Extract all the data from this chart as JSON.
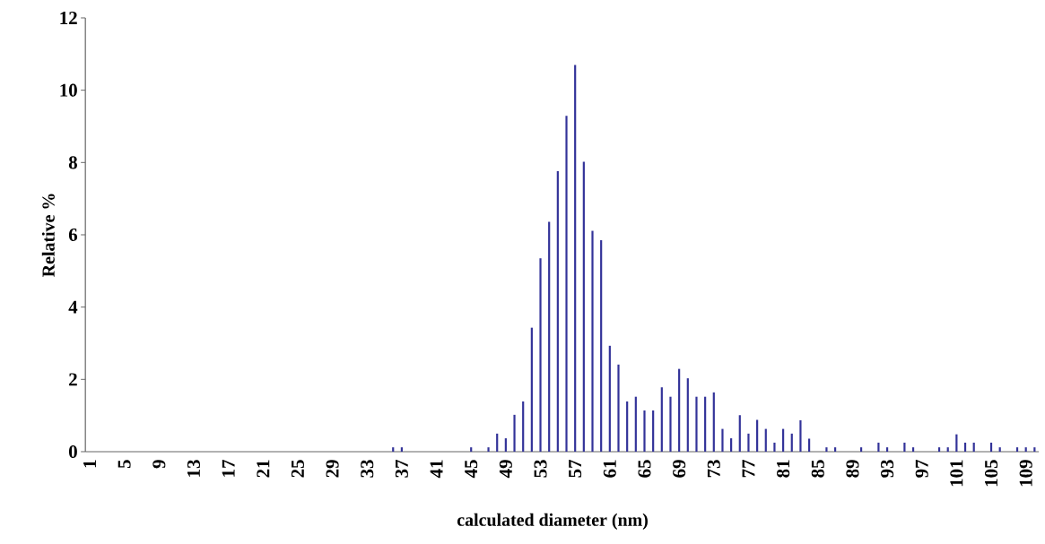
{
  "chart_data": {
    "type": "bar",
    "xlabel": "calculated diameter (nm)",
    "ylabel": "Relative %",
    "color": "#333399",
    "ylim": [
      0,
      12
    ],
    "yticks": [
      0,
      2,
      4,
      6,
      8,
      10,
      12
    ],
    "categories": [
      "1",
      null,
      null,
      null,
      "5",
      null,
      null,
      null,
      "9",
      null,
      null,
      null,
      "13",
      null,
      null,
      null,
      "17",
      null,
      null,
      null,
      "21",
      null,
      null,
      null,
      "25",
      null,
      null,
      null,
      "29",
      null,
      null,
      null,
      "33",
      null,
      null,
      null,
      "37",
      null,
      null,
      null,
      "41",
      null,
      null,
      null,
      "45",
      null,
      null,
      null,
      "49",
      null,
      null,
      null,
      "53",
      null,
      null,
      null,
      "57",
      null,
      null,
      null,
      "61",
      null,
      null,
      null,
      "65",
      null,
      null,
      null,
      "69",
      null,
      null,
      null,
      "73",
      null,
      null,
      null,
      "77",
      null,
      null,
      null,
      "81",
      null,
      null,
      null,
      "85",
      null,
      null,
      null,
      "89",
      null,
      null,
      null,
      "93",
      null,
      null,
      null,
      "97",
      null,
      null,
      null,
      "101",
      null,
      null,
      null,
      "105",
      null,
      null,
      null,
      "109",
      null
    ],
    "values": [
      0,
      0,
      0,
      0,
      0,
      0,
      0,
      0,
      0,
      0,
      0,
      0,
      0,
      0,
      0,
      0,
      0,
      0,
      0,
      0,
      0,
      0,
      0,
      0,
      0,
      0,
      0,
      0,
      0,
      0,
      0,
      0,
      0,
      0,
      0,
      0.12,
      0.12,
      0,
      0,
      0,
      0,
      0,
      0,
      0,
      0.12,
      0,
      0.12,
      0.5,
      0.37,
      1.02,
      1.39,
      3.43,
      5.35,
      6.36,
      7.76,
      9.29,
      10.7,
      8.02,
      6.11,
      5.85,
      2.93,
      2.41,
      1.39,
      1.52,
      1.14,
      1.14,
      1.78,
      1.52,
      2.29,
      2.03,
      1.52,
      1.52,
      1.64,
      0.63,
      0.37,
      1.01,
      0.5,
      0.88,
      0.63,
      0.25,
      0.63,
      0.5,
      0.87,
      0.36,
      0,
      0.12,
      0.12,
      0,
      0,
      0.12,
      0,
      0.25,
      0.12,
      0,
      0.25,
      0.12,
      0,
      0,
      0.12,
      0.12,
      0.48,
      0.25,
      0.25,
      0,
      0.25,
      0.12,
      0,
      0.12,
      0.12,
      0.12
    ]
  }
}
